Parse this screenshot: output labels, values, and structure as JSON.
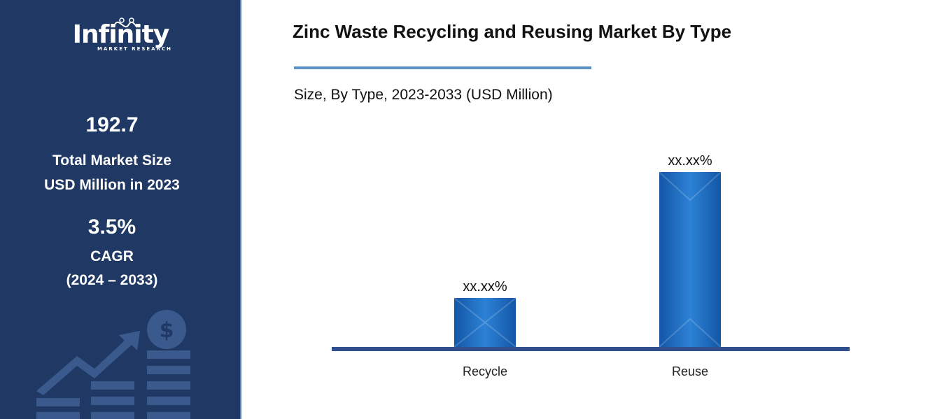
{
  "sidebar": {
    "logo_word": "Infinity",
    "logo_tag": "MARKET RESEARCH",
    "market_size_value": "192.7",
    "market_size_line1": "Total Market Size",
    "market_size_line2": "USD Million in 2023",
    "cagr_value": "3.5%",
    "cagr_label": "CAGR",
    "cagr_period": "(2024 – 2033)"
  },
  "colors": {
    "sidebar_bg": "#1f3864",
    "bar_fill": "#1f6fc0",
    "axis": "#2f4f8f",
    "rule": "#5b93c7"
  },
  "chart_data": {
    "type": "bar",
    "title": "Zinc Waste Recycling and Reusing Market By Type",
    "subtitle": "Size, By Type, 2023-2033 (USD Million)",
    "categories": [
      "Recycle",
      "Reuse"
    ],
    "values": [
      28,
      100
    ],
    "data_labels": [
      "xx.xx%",
      "xx.xx%"
    ],
    "ylim": [
      0,
      100
    ],
    "grid": false
  }
}
